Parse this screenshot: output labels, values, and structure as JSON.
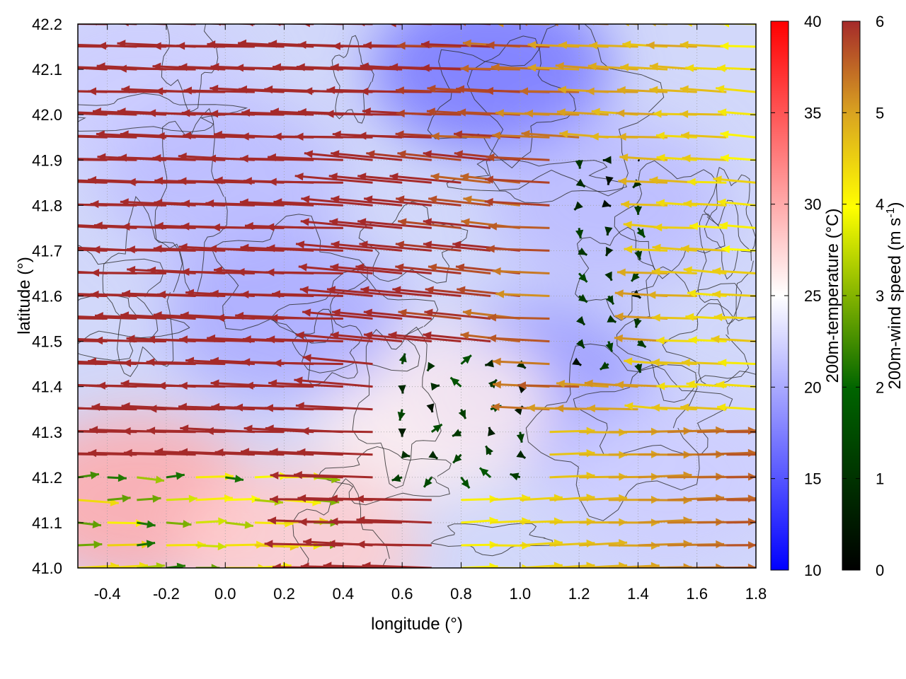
{
  "chart_data": {
    "type": "heatmap",
    "subtype": "temperature field with wind vectors and terrain contours",
    "title": "",
    "xlabel": "longitude (°)",
    "ylabel": "latitude (°)",
    "xlim": [
      -0.5,
      1.8
    ],
    "ylim": [
      41.0,
      42.2
    ],
    "xticks": [
      "-0.4",
      "-0.2",
      "0.0",
      "0.2",
      "0.4",
      "0.6",
      "0.8",
      "1.0",
      "1.2",
      "1.4",
      "1.6",
      "1.8"
    ],
    "yticks": [
      "41.0",
      "41.1",
      "41.2",
      "41.3",
      "41.4",
      "41.5",
      "41.6",
      "41.7",
      "41.8",
      "41.9",
      "42.0",
      "42.1",
      "42.2"
    ],
    "grid": true,
    "colorbars": [
      {
        "label": "200m-temperature (°C)",
        "range": [
          10,
          40
        ],
        "ticks": [
          "10",
          "15",
          "20",
          "25",
          "30",
          "35",
          "40"
        ],
        "colors": [
          "#0000ff",
          "#ffffff",
          "#ff0000"
        ]
      },
      {
        "label_main": "200m-wind speed (m s",
        "label_sup": "-1",
        "label_close": ")",
        "range": [
          0,
          6
        ],
        "ticks": [
          "0",
          "1",
          "2",
          "3",
          "4",
          "5",
          "6"
        ],
        "colors": [
          "#000000",
          "#006400",
          "#ffff00",
          "#daa520",
          "#a52a2a"
        ]
      }
    ],
    "temperature_regions": [
      {
        "lon": -0.3,
        "lat": 42.05,
        "temp": 22
      },
      {
        "lon": 0.0,
        "lat": 41.85,
        "temp": 21
      },
      {
        "lon": 0.9,
        "lat": 42.1,
        "temp": 17
      },
      {
        "lon": 1.3,
        "lat": 41.8,
        "temp": 21
      },
      {
        "lon": 1.05,
        "lat": 41.4,
        "temp": 19
      },
      {
        "lon": 0.7,
        "lat": 41.35,
        "temp": 26
      },
      {
        "lon": -0.3,
        "lat": 41.15,
        "temp": 30
      },
      {
        "lon": 0.25,
        "lat": 41.05,
        "temp": 28
      },
      {
        "lon": 1.5,
        "lat": 41.2,
        "temp": 22
      },
      {
        "lon": 0.2,
        "lat": 41.55,
        "temp": 20
      }
    ],
    "wind_field_description": "Strong westward (easterly) winds ~6 m/s over the western two thirds north of 41.2; weak variable winds 1-3 m/s near 0.5-1.0 lon, 41.2-41.4 lat; eastward winds 3-6 m/s south-east of 41.3."
  }
}
